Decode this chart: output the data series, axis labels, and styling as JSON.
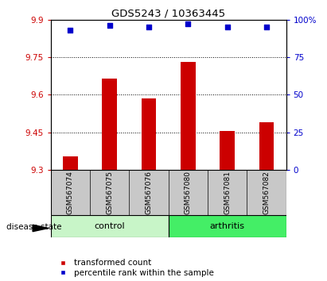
{
  "title": "GDS5243 / 10363445",
  "samples": [
    "GSM567074",
    "GSM567075",
    "GSM567076",
    "GSM567080",
    "GSM567081",
    "GSM567082"
  ],
  "transformed_counts": [
    9.355,
    9.665,
    9.585,
    9.73,
    9.455,
    9.49
  ],
  "percentile_ranks": [
    93,
    96,
    95,
    97,
    95,
    95
  ],
  "groups": [
    "control",
    "control",
    "control",
    "arthritis",
    "arthritis",
    "arthritis"
  ],
  "control_color": "#c8f5c8",
  "arthritis_color": "#44ee66",
  "bar_color": "#CC0000",
  "dot_color": "#0000CC",
  "ylim_left": [
    9.3,
    9.9
  ],
  "ylim_right": [
    0,
    100
  ],
  "yticks_left": [
    9.3,
    9.45,
    9.6,
    9.75,
    9.9
  ],
  "yticks_right": [
    0,
    25,
    50,
    75,
    100
  ],
  "ytick_labels_left": [
    "9.3",
    "9.45",
    "9.6",
    "9.75",
    "9.9"
  ],
  "ytick_labels_right": [
    "0",
    "25",
    "50",
    "75",
    "100%"
  ],
  "grid_lines": [
    9.45,
    9.6,
    9.75
  ],
  "legend_labels": [
    "transformed count",
    "percentile rank within the sample"
  ],
  "label_disease": "disease state",
  "sample_area_color": "#c8c8c8"
}
